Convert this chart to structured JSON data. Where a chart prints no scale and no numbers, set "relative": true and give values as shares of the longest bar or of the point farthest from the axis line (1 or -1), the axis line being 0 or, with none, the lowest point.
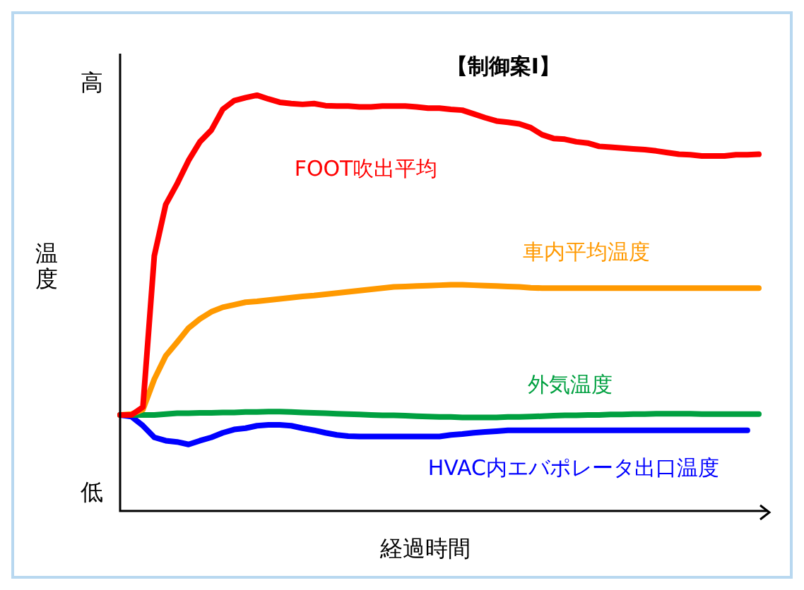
{
  "chart_data": {
    "type": "line",
    "title": "【制御案Ⅰ】",
    "xlabel": "経過時間",
    "ylabel": "温度",
    "annotations": [
      "高",
      "低"
    ],
    "relative": true,
    "legend": false,
    "marker": "none",
    "line_style": "solid",
    "categories": [
      null,
      null,
      null,
      null,
      null,
      null,
      null,
      null,
      null,
      null,
      null,
      null,
      null,
      null,
      null,
      null,
      null,
      null,
      null,
      null,
      null,
      null,
      null,
      null,
      null,
      null,
      null,
      null,
      null,
      null,
      null,
      null,
      null,
      null,
      null,
      null,
      null,
      null,
      null,
      null,
      null,
      null,
      null,
      null,
      null,
      null,
      null,
      null,
      null,
      null,
      null,
      null,
      null,
      null,
      null,
      null,
      null
    ],
    "series": [
      {
        "name": "FOOT吹出平均",
        "color": "#ff0000",
        "values": [
          0.231,
          0.231,
          0.25,
          0.614,
          0.737,
          0.787,
          0.843,
          0.888,
          0.916,
          0.966,
          0.987,
          0.994,
          1,
          0.991,
          0.983,
          0.98,
          0.978,
          0.98,
          0.975,
          0.974,
          0.974,
          0.972,
          0.972,
          0.974,
          0.974,
          0.974,
          0.972,
          0.969,
          0.969,
          0.966,
          0.964,
          0.955,
          0.946,
          0.938,
          0.935,
          0.931,
          0.922,
          0.905,
          0.896,
          0.894,
          0.888,
          0.885,
          0.877,
          0.875,
          0.873,
          0.871,
          0.869,
          0.866,
          0.862,
          0.858,
          0.857,
          0.854,
          0.854,
          0.854,
          0.857,
          0.857,
          0.858
        ]
      },
      {
        "name": "車内平均温度",
        "color": "#ff9900",
        "values": [
          0.231,
          0.233,
          0.244,
          0.317,
          0.373,
          0.406,
          0.44,
          0.462,
          0.479,
          0.49,
          0.496,
          0.502,
          0.504,
          0.507,
          0.51,
          0.513,
          0.516,
          0.518,
          0.521,
          0.524,
          0.527,
          0.53,
          0.533,
          0.536,
          0.539,
          0.54,
          0.541,
          0.542,
          0.543,
          0.544,
          0.544,
          0.543,
          0.542,
          0.541,
          0.54,
          0.539,
          0.537,
          0.536,
          0.536,
          0.536,
          0.536,
          0.536,
          0.536,
          0.536,
          0.536,
          0.536,
          0.536,
          0.536,
          0.536,
          0.536,
          0.536,
          0.536,
          0.536,
          0.536,
          0.536,
          0.536,
          0.536
        ]
      },
      {
        "name": "外気温度",
        "color": "#00a040",
        "values": [
          0.231,
          0.231,
          0.231,
          0.231,
          0.233,
          0.235,
          0.235,
          0.236,
          0.236,
          0.237,
          0.237,
          0.238,
          0.238,
          0.239,
          0.239,
          0.238,
          0.237,
          0.236,
          0.235,
          0.234,
          0.233,
          0.232,
          0.231,
          0.23,
          0.23,
          0.229,
          0.228,
          0.227,
          0.226,
          0.226,
          0.225,
          0.225,
          0.225,
          0.225,
          0.226,
          0.226,
          0.227,
          0.228,
          0.229,
          0.23,
          0.23,
          0.231,
          0.231,
          0.232,
          0.232,
          0.233,
          0.233,
          0.234,
          0.234,
          0.234,
          0.234,
          0.233,
          0.233,
          0.233,
          0.233,
          0.233,
          0.233
        ]
      },
      {
        "name": "HVAC内エバポレータ出口温度",
        "color": "#0000ff",
        "values": [
          0.231,
          0.227,
          0.205,
          0.177,
          0.169,
          0.166,
          0.16,
          0.169,
          0.177,
          0.188,
          0.196,
          0.199,
          0.205,
          0.207,
          0.207,
          0.205,
          0.199,
          0.194,
          0.188,
          0.183,
          0.18,
          0.179,
          0.179,
          0.179,
          0.179,
          0.179,
          0.179,
          0.179,
          0.179,
          0.183,
          0.185,
          0.188,
          0.19,
          0.192,
          0.194,
          0.194,
          0.194,
          0.194,
          0.194,
          0.194,
          0.194,
          0.194,
          0.194,
          0.194,
          0.194,
          0.194,
          0.194,
          0.194,
          0.194,
          0.194,
          0.194,
          0.194,
          0.194,
          0.194,
          0.194,
          0.194,
          null
        ]
      }
    ]
  }
}
